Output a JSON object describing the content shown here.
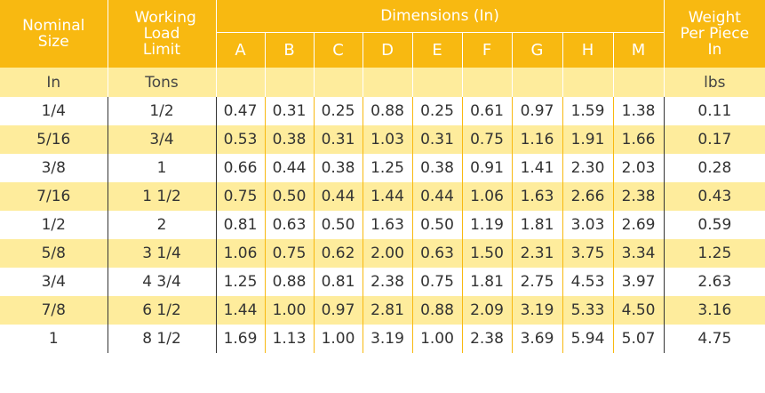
{
  "headers": {
    "nominal_size": "Nominal Size",
    "working_load_limit": "Working Load Limit",
    "dimensions": "Dimensions (In)",
    "weight": "Weight Per Piece In",
    "letters": [
      "A",
      "B",
      "C",
      "D",
      "E",
      "F",
      "G",
      "H",
      "M"
    ]
  },
  "units": {
    "nominal_size": "In",
    "working_load_limit": "Tons",
    "weight": "lbs"
  },
  "rows": [
    {
      "size": "1/4",
      "wll": "1/2",
      "dims": [
        "0.47",
        "0.31",
        "0.25",
        "0.88",
        "0.25",
        "0.61",
        "0.97",
        "1.59",
        "1.38"
      ],
      "weight": "0.11"
    },
    {
      "size": "5/16",
      "wll": "3/4",
      "dims": [
        "0.53",
        "0.38",
        "0.31",
        "1.03",
        "0.31",
        "0.75",
        "1.16",
        "1.91",
        "1.66"
      ],
      "weight": "0.17"
    },
    {
      "size": "3/8",
      "wll": "1",
      "dims": [
        "0.66",
        "0.44",
        "0.38",
        "1.25",
        "0.38",
        "0.91",
        "1.41",
        "2.30",
        "2.03"
      ],
      "weight": "0.28"
    },
    {
      "size": "7/16",
      "wll": "1 1/2",
      "dims": [
        "0.75",
        "0.50",
        "0.44",
        "1.44",
        "0.44",
        "1.06",
        "1.63",
        "2.66",
        "2.38"
      ],
      "weight": "0.43"
    },
    {
      "size": "1/2",
      "wll": "2",
      "dims": [
        "0.81",
        "0.63",
        "0.50",
        "1.63",
        "0.50",
        "1.19",
        "1.81",
        "3.03",
        "2.69"
      ],
      "weight": "0.59"
    },
    {
      "size": "5/8",
      "wll": "3 1/4",
      "dims": [
        "1.06",
        "0.75",
        "0.62",
        "2.00",
        "0.63",
        "1.50",
        "2.31",
        "3.75",
        "3.34"
      ],
      "weight": "1.25"
    },
    {
      "size": "3/4",
      "wll": "4 3/4",
      "dims": [
        "1.25",
        "0.88",
        "0.81",
        "2.38",
        "0.75",
        "1.81",
        "2.75",
        "4.53",
        "3.97"
      ],
      "weight": "2.63"
    },
    {
      "size": "7/8",
      "wll": "6 1/2",
      "dims": [
        "1.44",
        "1.00",
        "0.97",
        "2.81",
        "0.88",
        "2.09",
        "3.19",
        "5.33",
        "4.50"
      ],
      "weight": "3.16"
    },
    {
      "size": "1",
      "wll": "8 1/2",
      "dims": [
        "1.69",
        "1.13",
        "1.00",
        "3.19",
        "1.00",
        "2.38",
        "3.69",
        "5.94",
        "5.07"
      ],
      "weight": "4.75"
    }
  ],
  "colors": {
    "header_bg": "#f8b911",
    "band_bg": "#feec9c",
    "header_text": "#ffffff"
  }
}
